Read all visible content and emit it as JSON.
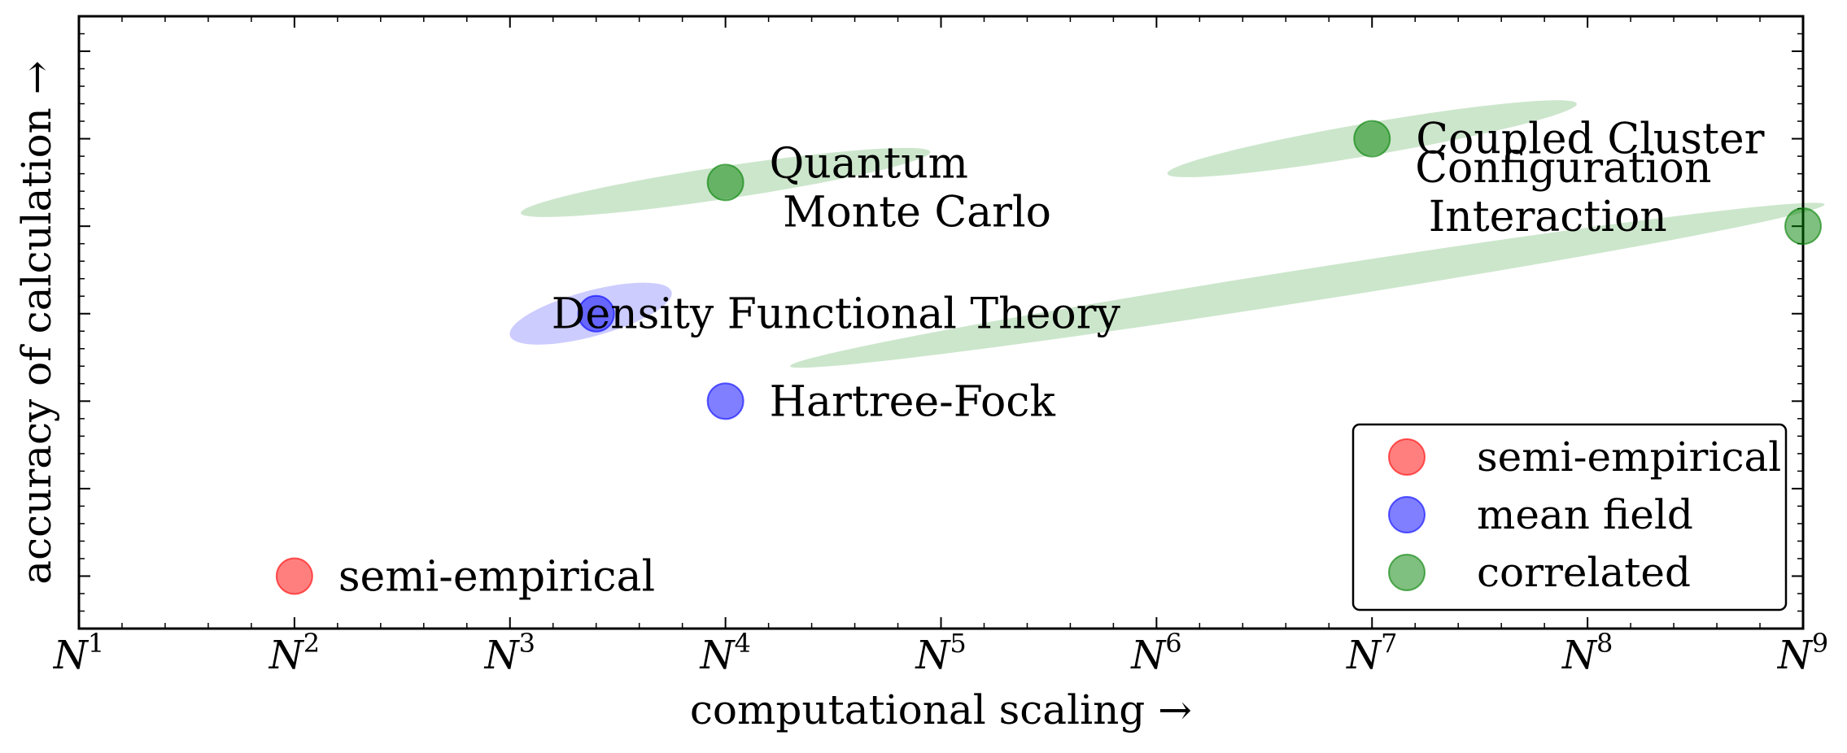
{
  "chart_data": {
    "type": "scatter",
    "title": "",
    "xlabel": "computational scaling",
    "ylabel": "accuracy of calculation",
    "axis_arrow": "→",
    "xscale": "log (powers of N)",
    "xlim": [
      1,
      9
    ],
    "ylim": [
      0.4,
      7.4
    ],
    "x_ticks": [
      {
        "base": "N",
        "exp": "1"
      },
      {
        "base": "N",
        "exp": "2"
      },
      {
        "base": "N",
        "exp": "3"
      },
      {
        "base": "N",
        "exp": "4"
      },
      {
        "base": "N",
        "exp": "5"
      },
      {
        "base": "N",
        "exp": "6"
      },
      {
        "base": "N",
        "exp": "7"
      },
      {
        "base": "N",
        "exp": "8"
      },
      {
        "base": "N",
        "exp": "9"
      }
    ],
    "y_ticks": [
      1,
      2,
      3,
      4,
      5,
      6,
      7
    ],
    "y_tick_labels_shown": false,
    "grid": false,
    "legend_position": "bottom-right",
    "series": [
      {
        "name": "semi-empirical",
        "color": "#ff0000"
      },
      {
        "name": "mean field",
        "color": "#0000ff"
      },
      {
        "name": "correlated",
        "color": "#008000"
      }
    ],
    "points": [
      {
        "label_lines": [
          "semi-empirical"
        ],
        "x": 2,
        "y": 1,
        "series": "semi-empirical"
      },
      {
        "label_lines": [
          "Hartree-Fock"
        ],
        "x": 4,
        "y": 3,
        "series": "mean field"
      },
      {
        "label_lines": [
          "Density Functional Theory"
        ],
        "x": 3.4,
        "y": 4,
        "series": "mean field"
      },
      {
        "label_lines": [
          "Quantum",
          " Monte Carlo"
        ],
        "x": 4,
        "y": 5.5,
        "series": "correlated"
      },
      {
        "label_lines": [
          "Coupled Cluster"
        ],
        "x": 7,
        "y": 6,
        "series": "correlated"
      },
      {
        "label_lines": [
          "Configuration",
          " Interaction"
        ],
        "x": 9,
        "y": 5,
        "series": "correlated"
      }
    ],
    "ranges": [
      {
        "series": "mean field",
        "x": [
          3,
          3.75
        ],
        "y": [
          3.75,
          4.25
        ]
      },
      {
        "series": "correlated",
        "x": [
          3.05,
          4.95
        ],
        "y": [
          5.15,
          5.85
        ]
      },
      {
        "series": "correlated",
        "x": [
          6.05,
          7.95
        ],
        "y": [
          5.6,
          6.4
        ]
      },
      {
        "series": "correlated",
        "x": [
          4.3,
          9.1
        ],
        "y": [
          3.4,
          5.25
        ]
      }
    ]
  }
}
